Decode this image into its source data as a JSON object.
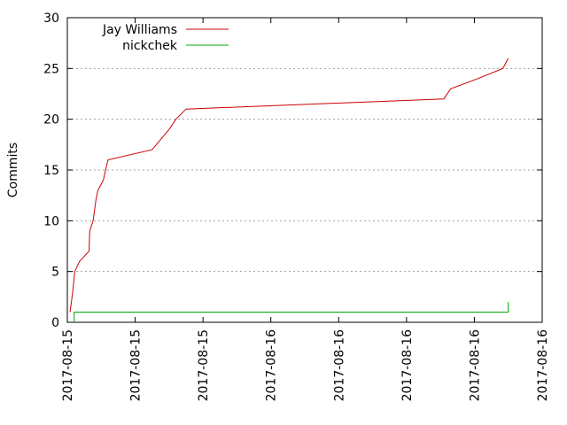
{
  "chart_data": {
    "type": "line",
    "title": "",
    "xlabel": "",
    "ylabel": "Commits",
    "ylim": [
      0,
      30
    ],
    "xlim": [
      0,
      7
    ],
    "yticks": [
      0,
      5,
      10,
      15,
      20,
      25,
      30
    ],
    "xticks": [
      {
        "x": 0,
        "label": "2017-08-15"
      },
      {
        "x": 1,
        "label": "2017-08-15"
      },
      {
        "x": 2,
        "label": "2017-08-15"
      },
      {
        "x": 3,
        "label": "2017-08-16"
      },
      {
        "x": 4,
        "label": "2017-08-16"
      },
      {
        "x": 5,
        "label": "2017-08-16"
      },
      {
        "x": 6,
        "label": "2017-08-16"
      },
      {
        "x": 7,
        "label": "2017-08-16"
      }
    ],
    "grid": true,
    "legend": "top-left",
    "series": [
      {
        "name": "Jay Williams",
        "color": "#cc0000",
        "points": [
          [
            0.04,
            1
          ],
          [
            0.08,
            3
          ],
          [
            0.11,
            5
          ],
          [
            0.18,
            6
          ],
          [
            0.32,
            7
          ],
          [
            0.33,
            9
          ],
          [
            0.38,
            10
          ],
          [
            0.42,
            12
          ],
          [
            0.45,
            13
          ],
          [
            0.53,
            14
          ],
          [
            0.6,
            16
          ],
          [
            1.25,
            17
          ],
          [
            1.5,
            19
          ],
          [
            1.6,
            20
          ],
          [
            1.75,
            21
          ],
          [
            5.55,
            22
          ],
          [
            5.65,
            23
          ],
          [
            6.05,
            24
          ],
          [
            6.42,
            25
          ],
          [
            6.5,
            26
          ]
        ]
      },
      {
        "name": "nickchek",
        "color": "#00aa00",
        "points": [
          [
            0.1,
            0
          ],
          [
            0.1,
            1
          ],
          [
            6.5,
            1
          ],
          [
            6.5,
            2
          ]
        ]
      }
    ]
  }
}
